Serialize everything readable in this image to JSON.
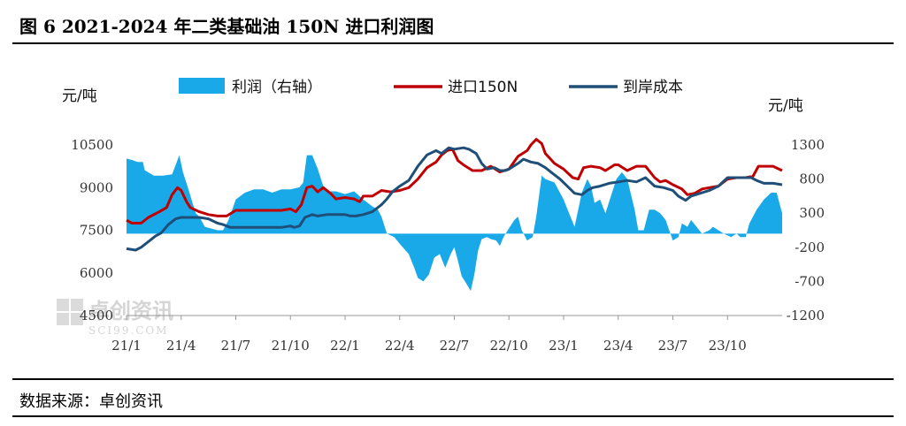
{
  "title": "图 6  2021-2024 年二类基础油 150N 进口利润图",
  "source": "数据来源：卓创资讯",
  "watermark": {
    "name": "卓创资讯",
    "site": "SCI99.COM"
  },
  "chart_data": {
    "type": "line",
    "title": "2021-2024 年二类基础油 150N 进口利润图",
    "ylabel_left": "元/吨",
    "ylabel_right": "元/吨",
    "ylim_left": [
      4500,
      10500
    ],
    "yticks_left": [
      4500,
      6000,
      7500,
      9000,
      10500
    ],
    "ylim_right": [
      -1200,
      1300
    ],
    "yticks_right": [
      -1200,
      -700,
      -200,
      300,
      800,
      1300
    ],
    "yticks_right_labels": [
      "-1200",
      "-700",
      "-200",
      "300",
      "800",
      "1300"
    ],
    "x_range": [
      0,
      36
    ],
    "xticks": [
      {
        "x": 0,
        "label": "21/1"
      },
      {
        "x": 3,
        "label": "21/4"
      },
      {
        "x": 6,
        "label": "21/7"
      },
      {
        "x": 9,
        "label": "21/10"
      },
      {
        "x": 12,
        "label": "22/1"
      },
      {
        "x": 15,
        "label": "22/4"
      },
      {
        "x": 18,
        "label": "22/7"
      },
      {
        "x": 21,
        "label": "22/10"
      },
      {
        "x": 24,
        "label": "23/1"
      },
      {
        "x": 27,
        "label": "23/4"
      },
      {
        "x": 30,
        "label": "23/7"
      },
      {
        "x": 33,
        "label": "23/10"
      }
    ],
    "legend": [
      {
        "name": "利润（右轴）",
        "kind": "area",
        "color": "#1AA9E8"
      },
      {
        "name": "进口150N",
        "kind": "line",
        "color": "#C00000"
      },
      {
        "name": "到岸成本",
        "kind": "line",
        "color": "#1F4E79"
      }
    ],
    "series": [
      {
        "name": "利润（右轴）",
        "axis": "right",
        "type": "area",
        "color": "#1AA9E8",
        "points": [
          [
            0,
            1100
          ],
          [
            0.3,
            1080
          ],
          [
            0.6,
            1050
          ],
          [
            0.9,
            1050
          ],
          [
            1,
            930
          ],
          [
            1.5,
            850
          ],
          [
            2,
            850
          ],
          [
            2.5,
            870
          ],
          [
            2.9,
            1150
          ],
          [
            3.1,
            900
          ],
          [
            3.4,
            650
          ],
          [
            3.8,
            300
          ],
          [
            4,
            250
          ],
          [
            4.3,
            100
          ],
          [
            5,
            50
          ],
          [
            5.3,
            50
          ],
          [
            5.6,
            200
          ],
          [
            6,
            500
          ],
          [
            6.5,
            600
          ],
          [
            7,
            650
          ],
          [
            7.5,
            650
          ],
          [
            8,
            600
          ],
          [
            8.5,
            650
          ],
          [
            9,
            650
          ],
          [
            9.5,
            680
          ],
          [
            9.7,
            750
          ],
          [
            9.9,
            1150
          ],
          [
            10.2,
            1150
          ],
          [
            10.5,
            950
          ],
          [
            10.8,
            700
          ],
          [
            11,
            620
          ],
          [
            11.5,
            620
          ],
          [
            12,
            580
          ],
          [
            12.5,
            620
          ],
          [
            13,
            500
          ],
          [
            13.5,
            400
          ],
          [
            13.8,
            350
          ],
          [
            14,
            250
          ],
          [
            14.3,
            0
          ],
          [
            14.7,
            -50
          ],
          [
            15,
            -150
          ],
          [
            15.5,
            -300
          ],
          [
            15.8,
            -500
          ],
          [
            16,
            -650
          ],
          [
            16.3,
            -700
          ],
          [
            16.6,
            -600
          ],
          [
            16.9,
            -350
          ],
          [
            17.2,
            -300
          ],
          [
            17.5,
            -500
          ],
          [
            17.8,
            -300
          ],
          [
            18,
            -200
          ],
          [
            18.2,
            -400
          ],
          [
            18.4,
            -620
          ],
          [
            18.7,
            -750
          ],
          [
            18.9,
            -840
          ],
          [
            19.1,
            -600
          ],
          [
            19.3,
            -250
          ],
          [
            19.5,
            -80
          ],
          [
            19.8,
            -50
          ],
          [
            20,
            -80
          ],
          [
            20.3,
            -100
          ],
          [
            20.5,
            -180
          ],
          [
            20.7,
            -50
          ],
          [
            21,
            80
          ],
          [
            21.3,
            200
          ],
          [
            21.5,
            250
          ],
          [
            21.7,
            50
          ],
          [
            22,
            -100
          ],
          [
            22.3,
            -50
          ],
          [
            22.5,
            250
          ],
          [
            22.8,
            850
          ],
          [
            23,
            800
          ],
          [
            23.5,
            750
          ],
          [
            24,
            500
          ],
          [
            24.3,
            300
          ],
          [
            24.6,
            100
          ],
          [
            25,
            600
          ],
          [
            25.3,
            800
          ],
          [
            25.5,
            700
          ],
          [
            25.7,
            450
          ],
          [
            26,
            500
          ],
          [
            26.3,
            300
          ],
          [
            26.6,
            550
          ],
          [
            26.9,
            800
          ],
          [
            27.2,
            900
          ],
          [
            27.5,
            800
          ],
          [
            27.9,
            350
          ],
          [
            28.1,
            50
          ],
          [
            28.4,
            50
          ],
          [
            28.7,
            350
          ],
          [
            29,
            350
          ],
          [
            29.3,
            300
          ],
          [
            29.6,
            200
          ],
          [
            29.8,
            50
          ],
          [
            30,
            -100
          ],
          [
            30.3,
            -50
          ],
          [
            30.5,
            150
          ],
          [
            30.8,
            100
          ],
          [
            31,
            200
          ],
          [
            31.3,
            100
          ],
          [
            31.6,
            0
          ],
          [
            32,
            50
          ],
          [
            32.2,
            100
          ],
          [
            32.5,
            50
          ],
          [
            32.8,
            0
          ],
          [
            33.2,
            -50
          ],
          [
            33.5,
            0
          ],
          [
            33.7,
            -50
          ],
          [
            34,
            -50
          ],
          [
            34.2,
            150
          ],
          [
            34.6,
            350
          ],
          [
            35,
            500
          ],
          [
            35.4,
            600
          ],
          [
            35.7,
            600
          ],
          [
            36,
            300
          ]
        ]
      },
      {
        "name": "进口150N",
        "axis": "left",
        "type": "line",
        "color": "#C00000",
        "points": [
          [
            0,
            7850
          ],
          [
            0.3,
            7750
          ],
          [
            0.8,
            7750
          ],
          [
            1.2,
            7950
          ],
          [
            1.8,
            8150
          ],
          [
            2.2,
            8300
          ],
          [
            2.5,
            8750
          ],
          [
            2.8,
            9000
          ],
          [
            3,
            8900
          ],
          [
            3.3,
            8500
          ],
          [
            3.5,
            8300
          ],
          [
            4,
            8150
          ],
          [
            4.5,
            8050
          ],
          [
            5,
            8000
          ],
          [
            5.5,
            8000
          ],
          [
            6,
            8200
          ],
          [
            7,
            8200
          ],
          [
            8,
            8200
          ],
          [
            8.5,
            8200
          ],
          [
            9,
            8250
          ],
          [
            9.3,
            8150
          ],
          [
            9.6,
            8400
          ],
          [
            9.9,
            9000
          ],
          [
            10.2,
            9050
          ],
          [
            10.5,
            8850
          ],
          [
            10.8,
            9000
          ],
          [
            11.2,
            8800
          ],
          [
            11.5,
            8600
          ],
          [
            12,
            8650
          ],
          [
            12.5,
            8600
          ],
          [
            12.8,
            8500
          ],
          [
            13,
            8700
          ],
          [
            13.5,
            8700
          ],
          [
            14,
            8900
          ],
          [
            14.5,
            8850
          ],
          [
            15,
            8900
          ],
          [
            15.5,
            9000
          ],
          [
            16,
            9300
          ],
          [
            16.5,
            9700
          ],
          [
            17,
            9900
          ],
          [
            17.3,
            10150
          ],
          [
            17.6,
            10300
          ],
          [
            17.9,
            10350
          ],
          [
            18.2,
            9950
          ],
          [
            18.5,
            9800
          ],
          [
            19,
            9600
          ],
          [
            19.5,
            9600
          ],
          [
            20,
            9750
          ],
          [
            20.5,
            9550
          ],
          [
            21,
            9650
          ],
          [
            21.5,
            10100
          ],
          [
            22,
            10300
          ],
          [
            22.2,
            10500
          ],
          [
            22.5,
            10700
          ],
          [
            22.8,
            10550
          ],
          [
            23,
            10200
          ],
          [
            23.5,
            9850
          ],
          [
            24,
            9650
          ],
          [
            24.5,
            9350
          ],
          [
            24.8,
            9300
          ],
          [
            25.1,
            9700
          ],
          [
            25.5,
            9750
          ],
          [
            26,
            9700
          ],
          [
            26.3,
            9600
          ],
          [
            26.8,
            9800
          ],
          [
            27,
            9800
          ],
          [
            27.5,
            9600
          ],
          [
            28,
            9750
          ],
          [
            28.5,
            9750
          ],
          [
            29,
            9350
          ],
          [
            29.3,
            9200
          ],
          [
            29.6,
            9250
          ],
          [
            30,
            9100
          ],
          [
            30.5,
            8950
          ],
          [
            30.8,
            8750
          ],
          [
            31.2,
            8800
          ],
          [
            31.6,
            8950
          ],
          [
            32,
            9000
          ],
          [
            32.5,
            9050
          ],
          [
            33,
            9300
          ],
          [
            33.5,
            9350
          ],
          [
            34,
            9350
          ],
          [
            34.4,
            9400
          ],
          [
            34.7,
            9750
          ],
          [
            35,
            9750
          ],
          [
            35.5,
            9750
          ],
          [
            36,
            9600
          ]
        ]
      },
      {
        "name": "到岸成本",
        "axis": "left",
        "type": "line",
        "color": "#1F4E79",
        "points": [
          [
            0,
            6850
          ],
          [
            0.5,
            6800
          ],
          [
            0.8,
            6900
          ],
          [
            1.2,
            7100
          ],
          [
            1.6,
            7300
          ],
          [
            1.9,
            7400
          ],
          [
            2.3,
            7700
          ],
          [
            2.7,
            7900
          ],
          [
            3,
            7950
          ],
          [
            3.5,
            7950
          ],
          [
            4,
            7950
          ],
          [
            4.5,
            7900
          ],
          [
            5,
            7750
          ],
          [
            5.3,
            7700
          ],
          [
            5.7,
            7600
          ],
          [
            6,
            7600
          ],
          [
            6.5,
            7600
          ],
          [
            7,
            7600
          ],
          [
            7.5,
            7600
          ],
          [
            8,
            7600
          ],
          [
            8.5,
            7600
          ],
          [
            9,
            7650
          ],
          [
            9.2,
            7600
          ],
          [
            9.5,
            7650
          ],
          [
            9.8,
            7950
          ],
          [
            10.2,
            8050
          ],
          [
            10.5,
            8000
          ],
          [
            11,
            8050
          ],
          [
            11.5,
            8050
          ],
          [
            12,
            8050
          ],
          [
            12.3,
            8000
          ],
          [
            12.6,
            8000
          ],
          [
            13,
            8050
          ],
          [
            13.5,
            8150
          ],
          [
            14,
            8400
          ],
          [
            14.3,
            8600
          ],
          [
            14.6,
            8850
          ],
          [
            15,
            9050
          ],
          [
            15.5,
            9250
          ],
          [
            16,
            9750
          ],
          [
            16.5,
            10150
          ],
          [
            17,
            10300
          ],
          [
            17.3,
            10200
          ],
          [
            17.7,
            10400
          ],
          [
            18,
            10350
          ],
          [
            18.5,
            10400
          ],
          [
            18.8,
            10350
          ],
          [
            19.2,
            10200
          ],
          [
            19.5,
            9850
          ],
          [
            19.8,
            9650
          ],
          [
            20.2,
            9700
          ],
          [
            20.5,
            9600
          ],
          [
            20.8,
            9600
          ],
          [
            21,
            9650
          ],
          [
            21.5,
            9850
          ],
          [
            21.8,
            10000
          ],
          [
            22.2,
            9900
          ],
          [
            22.6,
            9850
          ],
          [
            23,
            9700
          ],
          [
            23.4,
            9500
          ],
          [
            23.8,
            9300
          ],
          [
            24.2,
            9050
          ],
          [
            24.6,
            8800
          ],
          [
            25,
            8750
          ],
          [
            25.3,
            8900
          ],
          [
            25.6,
            9000
          ],
          [
            26,
            9050
          ],
          [
            26.5,
            9150
          ],
          [
            27,
            9200
          ],
          [
            27.5,
            9250
          ],
          [
            28,
            9200
          ],
          [
            28.5,
            9350
          ],
          [
            29,
            9050
          ],
          [
            29.5,
            9000
          ],
          [
            30,
            8900
          ],
          [
            30.3,
            8700
          ],
          [
            30.7,
            8550
          ],
          [
            31,
            8700
          ],
          [
            31.5,
            8800
          ],
          [
            32,
            8900
          ],
          [
            32.5,
            9050
          ],
          [
            33,
            9350
          ],
          [
            33.5,
            9350
          ],
          [
            34,
            9350
          ],
          [
            34.3,
            9350
          ],
          [
            34.6,
            9250
          ],
          [
            35,
            9150
          ],
          [
            35.5,
            9150
          ],
          [
            36,
            9100
          ]
        ]
      }
    ]
  }
}
